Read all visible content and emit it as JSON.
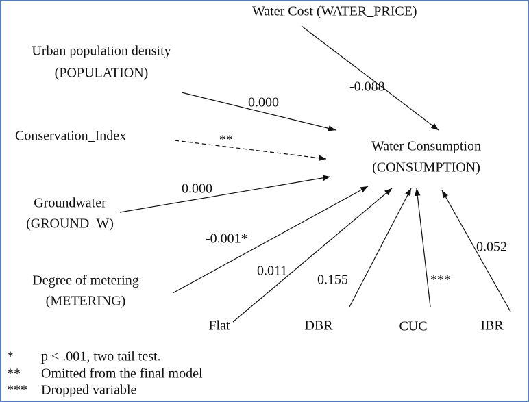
{
  "nodes": [
    {
      "id": "water_price",
      "label": [
        "Water Cost (WATER_PRICE)"
      ]
    },
    {
      "id": "population",
      "label": [
        "Urban population density",
        "(POPULATION)"
      ]
    },
    {
      "id": "conservation",
      "label": [
        "Conservation_Index"
      ]
    },
    {
      "id": "consumption",
      "label": [
        "Water Consumption",
        "(CONSUMPTION)"
      ]
    },
    {
      "id": "ground_w",
      "label": [
        "Groundwater",
        "(GROUND_W)"
      ]
    },
    {
      "id": "metering",
      "label": [
        "Degree of metering",
        "(METERING)"
      ]
    },
    {
      "id": "flat",
      "label": [
        "Flat"
      ]
    },
    {
      "id": "dbr",
      "label": [
        "DBR"
      ]
    },
    {
      "id": "cuc",
      "label": [
        "CUC"
      ]
    },
    {
      "id": "ibr",
      "label": [
        "IBR"
      ]
    }
  ],
  "edges": [
    {
      "from": "water_price",
      "label": "-0.088"
    },
    {
      "from": "population",
      "label": "0.000"
    },
    {
      "from": "conservation",
      "label": "**"
    },
    {
      "from": "ground_w",
      "label": "0.000"
    },
    {
      "from": "metering",
      "label": "-0.001*"
    },
    {
      "from": "flat",
      "label": "0.011"
    },
    {
      "from": "dbr",
      "label": "0.155"
    },
    {
      "from": "cuc",
      "label": "***"
    },
    {
      "from": "ibr",
      "label": "0.052"
    }
  ],
  "footnotes": [
    {
      "symbol": "*",
      "text": "p < .001, two tail test."
    },
    {
      "symbol": "**",
      "text": "Omitted from the final model"
    },
    {
      "symbol": "***",
      "text": "Dropped variable"
    }
  ]
}
